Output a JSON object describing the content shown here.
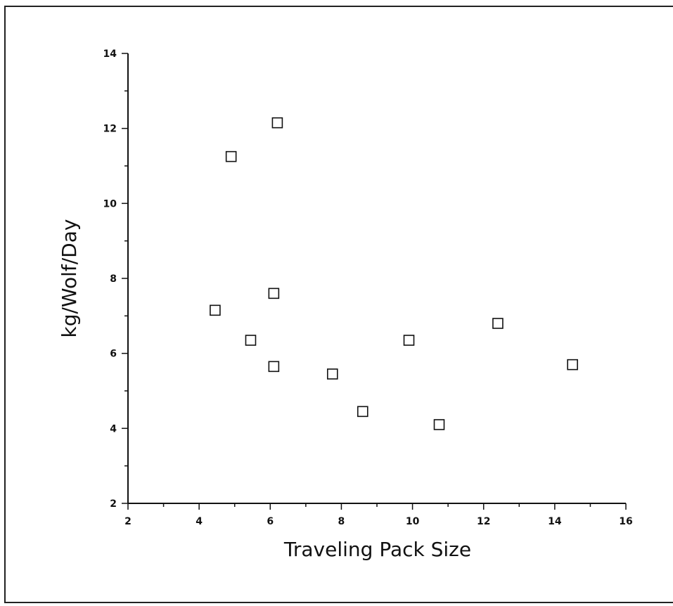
{
  "chart_data": {
    "type": "scatter",
    "title": "",
    "xlabel": "Traveling Pack Size",
    "ylabel": "kg/Wolf/Day",
    "xlim": [
      2,
      16
    ],
    "ylim": [
      2,
      14
    ],
    "x_ticks": [
      2,
      4,
      6,
      8,
      10,
      12,
      14,
      16
    ],
    "y_ticks": [
      2,
      4,
      6,
      8,
      10,
      12,
      14
    ],
    "x_minor_step": 1,
    "y_minor_step": 1,
    "marker": "open-square",
    "grid": false,
    "legend": "none",
    "points": [
      {
        "x": 4.9,
        "y": 11.25
      },
      {
        "x": 6.2,
        "y": 12.15
      },
      {
        "x": 4.45,
        "y": 7.15
      },
      {
        "x": 6.1,
        "y": 7.6
      },
      {
        "x": 5.45,
        "y": 6.35
      },
      {
        "x": 6.1,
        "y": 5.65
      },
      {
        "x": 7.75,
        "y": 5.45
      },
      {
        "x": 8.6,
        "y": 4.45
      },
      {
        "x": 9.9,
        "y": 6.35
      },
      {
        "x": 10.75,
        "y": 4.1
      },
      {
        "x": 12.4,
        "y": 6.8
      },
      {
        "x": 14.5,
        "y": 5.7
      }
    ]
  },
  "colors": {
    "ink": "#111111",
    "background": "#ffffff"
  }
}
